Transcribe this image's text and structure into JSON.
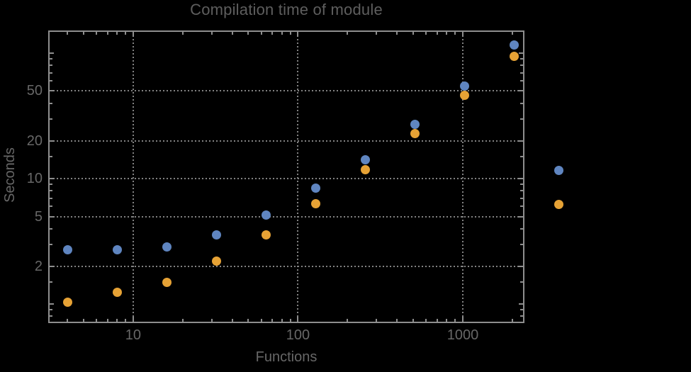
{
  "title": "Compilation time of module",
  "chart_data": {
    "type": "scatter",
    "title": "Compilation time of module",
    "xlabel": "Functions",
    "ylabel": "Seconds",
    "x_scale": "log",
    "y_scale": "log",
    "xlim": [
      3.05,
      2367
    ],
    "ylim": [
      0.706,
      152
    ],
    "grid": {
      "style": "dotted",
      "x_values": [
        10,
        100,
        1000
      ],
      "y_values": [
        2,
        5,
        10,
        20,
        50
      ]
    },
    "x": [
      4,
      8,
      16,
      32,
      64,
      128,
      256,
      512,
      1024,
      2048
    ],
    "series": [
      {
        "name": "series-1",
        "color": "#5F85C0",
        "marker": "circle",
        "values": [
          2.7,
          2.7,
          2.85,
          3.55,
          5.1,
          8.4,
          14.2,
          27,
          55,
          116
        ]
      },
      {
        "name": "series-2",
        "color": "#E6A235",
        "marker": "circle",
        "values": [
          1.03,
          1.25,
          1.5,
          2.2,
          3.55,
          6.35,
          11.8,
          22.8,
          46,
          95
        ]
      }
    ],
    "x_ticks": {
      "major": [
        10,
        100,
        1000
      ],
      "labels": [
        "10",
        "100",
        "1000"
      ],
      "minor": [
        4,
        5,
        6,
        7,
        8,
        9,
        20,
        30,
        40,
        50,
        60,
        70,
        80,
        90,
        200,
        300,
        400,
        500,
        600,
        700,
        800,
        900,
        2000
      ]
    },
    "y_ticks": {
      "major": [
        2,
        5,
        10,
        20,
        50
      ],
      "labels": [
        "2",
        "5",
        "10",
        "20",
        "50"
      ],
      "decade": [
        1,
        100
      ],
      "minor": [
        0.8,
        0.9,
        1.5,
        3,
        4,
        6,
        7,
        8,
        9,
        15,
        30,
        40,
        60,
        70,
        80,
        90
      ]
    },
    "legend_position": "right",
    "legend_labels_visible": false
  },
  "legend": {
    "markers": [
      {
        "series": "series-1",
        "color": "#5F85C0"
      },
      {
        "series": "series-2",
        "color": "#E6A235"
      }
    ]
  },
  "colors": {
    "background": "#000000",
    "frame": "#8E8E8E",
    "grid": "#828282",
    "title_text": "#5E5E5E",
    "label_text": "#676767",
    "series1": "#5F85C0",
    "series2": "#E6A235"
  }
}
